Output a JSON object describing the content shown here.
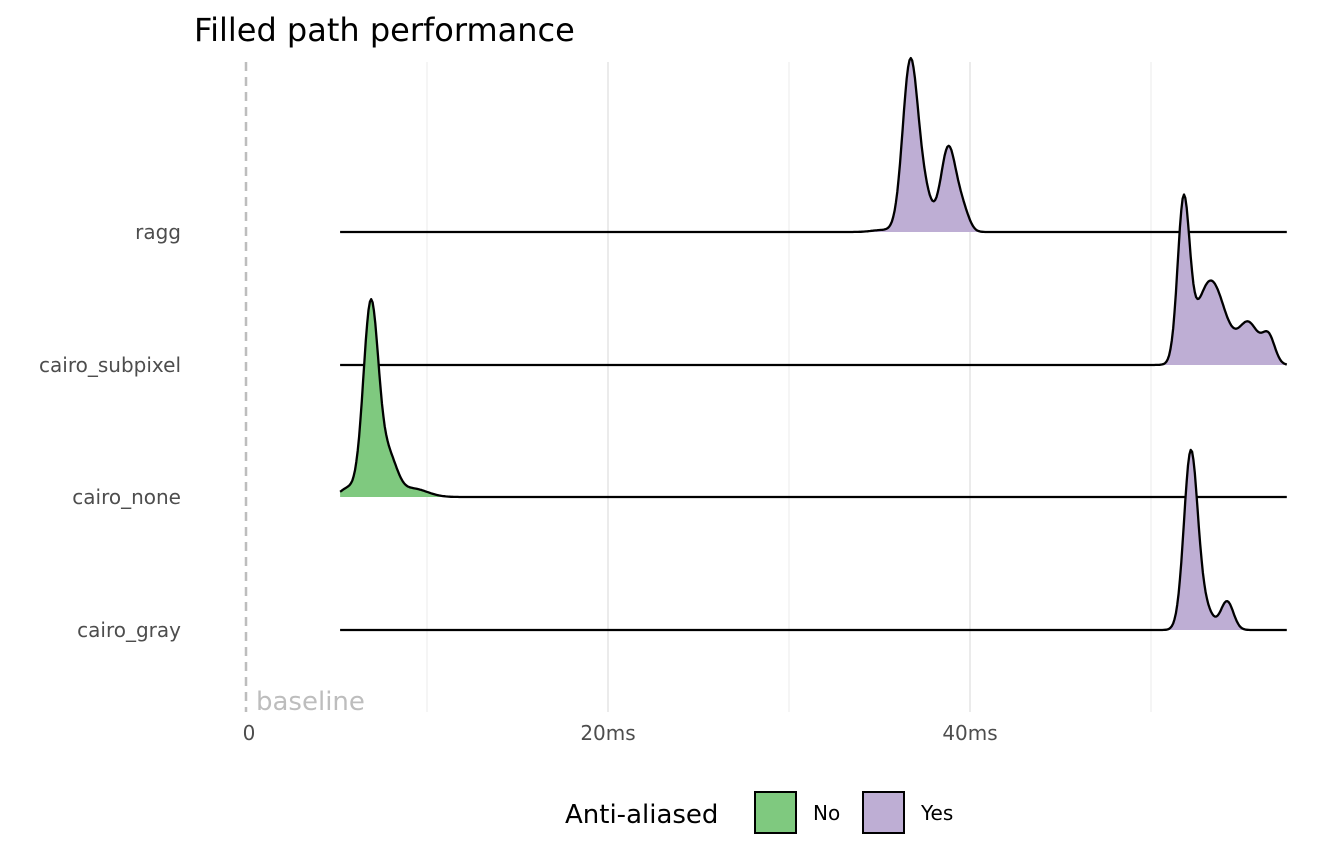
{
  "chart_data": {
    "type": "ridgeline",
    "title": "Filled path performance",
    "xlabel": "",
    "ylabel": "",
    "x_unit": "ms",
    "xlim": [
      0,
      57.5
    ],
    "x_ticks": [
      0,
      20,
      40
    ],
    "x_tick_labels": [
      "0",
      "20ms",
      "40ms"
    ],
    "grid": true,
    "baseline_annotation": {
      "x": 0,
      "label": "baseline"
    },
    "categories": [
      "ragg",
      "cairo_subpixel",
      "cairo_none",
      "cairo_gray"
    ],
    "legend": {
      "title": "Anti-aliased",
      "placement": "bottom",
      "entries": [
        {
          "label": "No",
          "color": "#7fc97f"
        },
        {
          "label": "Yes",
          "color": "#beaed4"
        }
      ]
    },
    "series": [
      {
        "category": "ragg",
        "anti_aliased": "Yes",
        "x_range": [
          5.2,
          57.5
        ],
        "kernels": [
          [
            35.2,
            0.012,
            0.6
          ],
          [
            36.7,
            1.0,
            0.42
          ],
          [
            37.5,
            0.2,
            0.4
          ],
          [
            38.8,
            0.5,
            0.42
          ],
          [
            39.6,
            0.12,
            0.35
          ]
        ]
      },
      {
        "category": "cairo_subpixel",
        "anti_aliased": "Yes",
        "x_range": [
          5.2,
          57.5
        ],
        "kernels": [
          [
            51.8,
            0.92,
            0.33
          ],
          [
            53.3,
            0.5,
            0.8
          ],
          [
            55.4,
            0.24,
            0.55
          ],
          [
            56.5,
            0.16,
            0.35
          ]
        ]
      },
      {
        "category": "cairo_none",
        "anti_aliased": "No",
        "x_range": [
          5.2,
          57.5
        ],
        "kernels": [
          [
            6.9,
            1.15,
            0.42
          ],
          [
            7.9,
            0.22,
            0.45
          ],
          [
            5.6,
            0.05,
            0.4
          ],
          [
            9.2,
            0.05,
            0.8
          ]
        ]
      },
      {
        "category": "cairo_gray",
        "anti_aliased": "Yes",
        "x_range": [
          5.2,
          57.5
        ],
        "kernels": [
          [
            52.2,
            1.05,
            0.38
          ],
          [
            53.0,
            0.12,
            0.4
          ],
          [
            54.2,
            0.17,
            0.35
          ]
        ]
      }
    ]
  }
}
